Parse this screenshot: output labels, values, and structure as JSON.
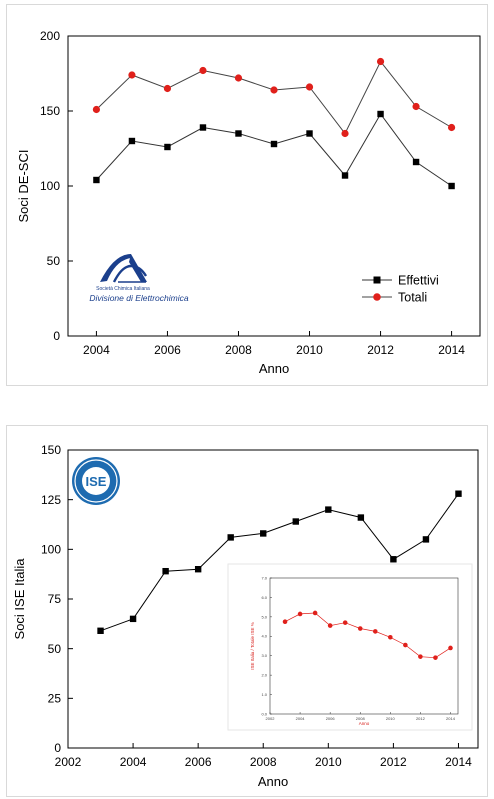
{
  "chart_data": [
    {
      "type": "line",
      "title": "",
      "xlabel": "Anno",
      "ylabel": "Soci DE-SCI",
      "xlim": [
        2003.2,
        2014.8
      ],
      "ylim": [
        0,
        200
      ],
      "xticks": [
        "2004",
        "2006",
        "2008",
        "2010",
        "2012",
        "2014"
      ],
      "yticks": [
        "0",
        "50",
        "100",
        "150",
        "200"
      ],
      "x": [
        2004,
        2005,
        2006,
        2007,
        2008,
        2009,
        2010,
        2011,
        2012,
        2013,
        2014
      ],
      "series": [
        {
          "name": "Effettivi",
          "marker": "square",
          "line_color": "#333333",
          "marker_color": "#000000",
          "values": [
            104,
            130,
            126,
            139,
            135,
            128,
            135,
            107,
            148,
            116,
            100
          ]
        },
        {
          "name": "Totali",
          "marker": "circle",
          "line_color": "#444444",
          "marker_color": "#e0201b",
          "values": [
            151,
            174,
            165,
            177,
            172,
            164,
            166,
            135,
            183,
            153,
            139
          ]
        }
      ],
      "legend_position": "bottom-right",
      "logo": {
        "line1": "Società Chimica Italiana",
        "line2": "Divisione di Elettrochimica"
      }
    },
    {
      "type": "line",
      "title": "",
      "xlabel": "Anno",
      "ylabel": "Soci ISE Italia",
      "xlim": [
        2002,
        2014.6
      ],
      "ylim": [
        0,
        150
      ],
      "xticks": [
        "2002",
        "2004",
        "2006",
        "2008",
        "2010",
        "2012",
        "2014"
      ],
      "yticks": [
        "0",
        "25",
        "50",
        "75",
        "100",
        "125",
        "150"
      ],
      "x": [
        2003,
        2004,
        2005,
        2006,
        2007,
        2008,
        2009,
        2010,
        2011,
        2012,
        2013,
        2014
      ],
      "series": [
        {
          "name": "",
          "marker": "square",
          "line_color": "#000000",
          "marker_color": "#000000",
          "values": [
            59,
            65,
            89,
            90,
            106,
            108,
            114,
            120,
            116,
            95,
            105,
            128
          ]
        }
      ],
      "logo": {
        "text": "ISE"
      },
      "inset": {
        "type": "line",
        "xlabel": "Anno",
        "ylabel": "ISE Italia / Totale ISE %",
        "xlim": [
          2002,
          2014.5
        ],
        "ylim": [
          0,
          7
        ],
        "xticks": [
          "2002",
          "2004",
          "2006",
          "2008",
          "2010",
          "2012",
          "2014"
        ],
        "yticks": [
          "0.0",
          "1.0",
          "2.0",
          "3.0",
          "4.0",
          "5.0",
          "6.0",
          "7.0"
        ],
        "x": [
          2003,
          2004,
          2005,
          2006,
          2007,
          2008,
          2009,
          2010,
          2011,
          2012,
          2013,
          2014
        ],
        "series": [
          {
            "name": "",
            "marker": "circle",
            "line_color": "#e0201b",
            "marker_color": "#e0201b",
            "values": [
              4.75,
              5.15,
              5.2,
              4.55,
              4.7,
              4.4,
              4.25,
              3.95,
              3.55,
              2.95,
              2.9,
              3.4
            ]
          }
        ]
      }
    }
  ]
}
